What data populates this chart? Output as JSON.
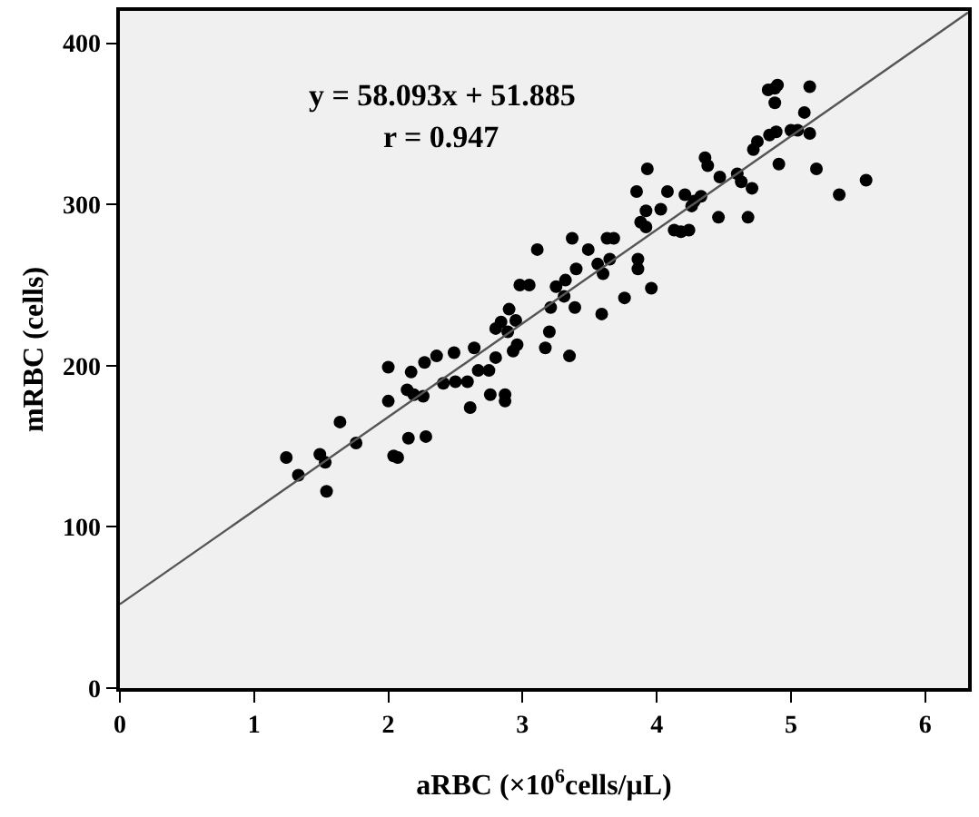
{
  "chart_data": {
    "type": "scatter",
    "xlabel": "aRBC (×10$^{6}$cells/μL)",
    "ylabel": "mRBC (cells)",
    "annotations": [
      "y = 58.093x + 51.885",
      "r = 0.947"
    ],
    "xlim": [
      0,
      6.32
    ],
    "ylim": [
      0,
      420
    ],
    "xticks": [
      0,
      1,
      2,
      3,
      4,
      5,
      6
    ],
    "yticks": [
      0,
      100,
      200,
      300,
      400
    ],
    "grid": false,
    "marker": "circle",
    "series": [
      {
        "color": "#000000",
        "x": [
          1.24,
          1.33,
          1.49,
          1.53,
          1.54,
          1.64,
          1.76,
          2.0,
          2.0,
          2.04,
          2.07,
          2.15,
          2.14,
          2.17,
          2.19,
          2.26,
          2.28,
          2.27,
          2.36,
          2.41,
          2.49,
          2.5,
          2.59,
          2.61,
          2.64,
          2.67,
          2.75,
          2.76,
          2.8,
          2.8,
          2.84,
          2.87,
          2.87,
          2.89,
          2.9,
          2.93,
          2.95,
          2.96,
          2.98,
          3.05,
          3.11,
          3.17,
          3.2,
          3.21,
          3.25,
          3.31,
          3.32,
          3.35,
          3.37,
          3.39,
          3.4,
          3.49,
          3.56,
          3.59,
          3.6,
          3.63,
          3.65,
          3.68,
          3.76,
          3.85,
          3.86,
          3.86,
          3.88,
          3.92,
          3.93,
          3.92,
          3.96,
          4.03,
          4.08,
          4.13,
          4.18,
          4.21,
          4.24,
          4.26,
          4.28,
          4.33,
          4.36,
          4.38,
          4.46,
          4.47,
          4.6,
          4.63,
          4.68,
          4.71,
          4.72,
          4.75,
          4.83,
          4.84,
          4.88,
          4.88,
          4.89,
          4.91,
          4.9,
          5.0,
          5.05,
          5.1,
          5.14,
          5.14,
          5.19,
          5.36,
          5.56
        ],
        "values": [
          143,
          132,
          145,
          140,
          122,
          165,
          152,
          199,
          178,
          144,
          143,
          155,
          185,
          196,
          182,
          181,
          156,
          202,
          206,
          189,
          208,
          190,
          190,
          174,
          211,
          197,
          197,
          182,
          205,
          223,
          227,
          182,
          178,
          221,
          235,
          209,
          228,
          213,
          250,
          250,
          272,
          211,
          221,
          236,
          249,
          243,
          253,
          206,
          279,
          236,
          260,
          272,
          263,
          232,
          257,
          279,
          266,
          279,
          242,
          308,
          266,
          260,
          289,
          296,
          322,
          286,
          248,
          297,
          308,
          284,
          283,
          306,
          284,
          299,
          302,
          305,
          329,
          324,
          292,
          317,
          319,
          314,
          292,
          310,
          334,
          339,
          371,
          343,
          372,
          363,
          345,
          325,
          374,
          346,
          346,
          357,
          344,
          373,
          322,
          306,
          315
        ]
      },
      {
        "type": "line",
        "color": "#555555",
        "x": [
          0,
          6.32
        ],
        "values": [
          52,
          419
        ],
        "line_style": "solid",
        "marker": "none"
      }
    ]
  }
}
